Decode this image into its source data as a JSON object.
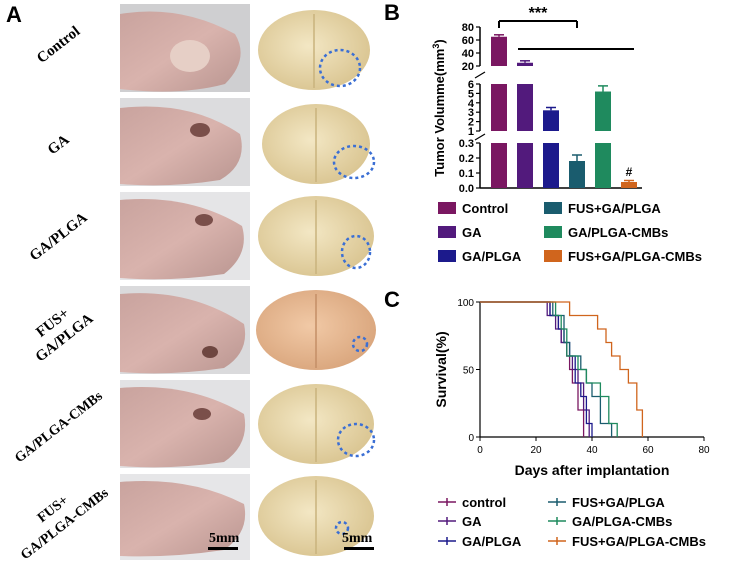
{
  "panel_a": {
    "letter": "A",
    "rows": [
      {
        "label_lines": [
          "Control"
        ]
      },
      {
        "label_lines": [
          "GA"
        ]
      },
      {
        "label_lines": [
          "GA/PLGA"
        ]
      },
      {
        "label_lines": [
          "FUS+",
          "GA/PLGA"
        ]
      },
      {
        "label_lines": [
          "GA/PLGA-CMBs"
        ]
      },
      {
        "label_lines": [
          "FUS+",
          "GA/PLGA-CMBs"
        ]
      }
    ],
    "scale_left": "5mm",
    "scale_right": "5mm"
  },
  "panel_b": {
    "letter": "B"
  },
  "panel_c": {
    "letter": "C"
  },
  "colors": {
    "Control": "#7a1761",
    "GA": "#521a7c",
    "GA/PLGA": "#1c1a8c",
    "FUS+GA/PLGA": "#1a5c6e",
    "GA/PLGA-CMBs": "#1f8a5e",
    "FUS+GA/PLGA-CMBs": "#d0651d"
  },
  "chart_data": [
    {
      "type": "bar",
      "title": "",
      "ylabel": "Tumor Volumme(mm3)",
      "ylabel_main": "Tumor Volumme(mm",
      "ylabel_sup": "3",
      "ylabel_close": ")",
      "categories": [
        "Control",
        "GA",
        "GA/PLGA",
        "FUS+GA/PLGA",
        "GA/PLGA-CMBs",
        "FUS+GA/PLGA-CMBs"
      ],
      "values": [
        65,
        25,
        3.2,
        0.18,
        5.2,
        0.04
      ],
      "errors": [
        3,
        3,
        0.3,
        0.04,
        0.6,
        0.01
      ],
      "axis_segments": [
        {
          "range": [
            0,
            0.3
          ],
          "ticks": [
            "0.0",
            "0.1",
            "0.2",
            "0.3"
          ]
        },
        {
          "range": [
            1,
            6
          ],
          "ticks": [
            "1",
            "2",
            "3",
            "4",
            "5",
            "6"
          ]
        },
        {
          "range": [
            20,
            80
          ],
          "ticks": [
            "20",
            "40",
            "60",
            "80"
          ]
        }
      ],
      "significance": {
        "label": "***",
        "from": "Control",
        "to": "FUS+GA/PLGA"
      },
      "annotation": "#",
      "annotation_on": "FUS+GA/PLGA-CMBs",
      "legend_entries": [
        "Control",
        "FUS+GA/PLGA",
        "GA",
        "GA/PLGA-CMBs",
        "GA/PLGA",
        "FUS+GA/PLGA-CMBs"
      ]
    },
    {
      "type": "line",
      "title": "",
      "xlabel": "Days after implantation",
      "ylabel": "Survival(%)",
      "xlim": [
        0,
        80
      ],
      "ylim": [
        0,
        100
      ],
      "xticks": [
        "0",
        "20",
        "40",
        "60",
        "80"
      ],
      "yticks": [
        "0",
        "50",
        "100"
      ],
      "series": [
        {
          "name": "control",
          "color": "#7a1761",
          "days": [
            0,
            22,
            25,
            28,
            29,
            31,
            32,
            33,
            35,
            37
          ],
          "survival": [
            100,
            100,
            90,
            80,
            70,
            60,
            50,
            40,
            20,
            0
          ]
        },
        {
          "name": "GA",
          "color": "#521a7c",
          "days": [
            0,
            22,
            24,
            27,
            29,
            31,
            33,
            35,
            37,
            39
          ],
          "survival": [
            100,
            100,
            90,
            80,
            70,
            60,
            50,
            40,
            20,
            0
          ]
        },
        {
          "name": "GA/PLGA",
          "color": "#1c1a8c",
          "days": [
            0,
            23,
            25,
            28,
            30,
            32,
            34,
            36,
            38,
            40
          ],
          "survival": [
            100,
            100,
            90,
            80,
            70,
            60,
            40,
            30,
            10,
            0
          ]
        },
        {
          "name": "FUS+GA/PLGA",
          "color": "#1a5c6e",
          "days": [
            0,
            24,
            26,
            30,
            32,
            36,
            38,
            40,
            43,
            47
          ],
          "survival": [
            100,
            100,
            90,
            70,
            60,
            50,
            40,
            30,
            10,
            0
          ]
        },
        {
          "name": "GA/PLGA-CMBs",
          "color": "#1f8a5e",
          "days": [
            0,
            24,
            27,
            29,
            31,
            35,
            38,
            43,
            46,
            49
          ],
          "survival": [
            100,
            100,
            90,
            80,
            60,
            50,
            40,
            30,
            10,
            0
          ]
        },
        {
          "name": "FUS+GA/PLGA-CMBs",
          "color": "#d0651d",
          "days": [
            0,
            28,
            32,
            37,
            42,
            45,
            47,
            50,
            53,
            56,
            58
          ],
          "survival": [
            100,
            100,
            90,
            90,
            80,
            70,
            60,
            50,
            40,
            20,
            0
          ]
        }
      ],
      "legend_entries": [
        "control",
        "FUS+GA/PLGA",
        "GA",
        "GA/PLGA-CMBs",
        "GA/PLGA",
        "FUS+GA/PLGA-CMBs"
      ]
    }
  ]
}
